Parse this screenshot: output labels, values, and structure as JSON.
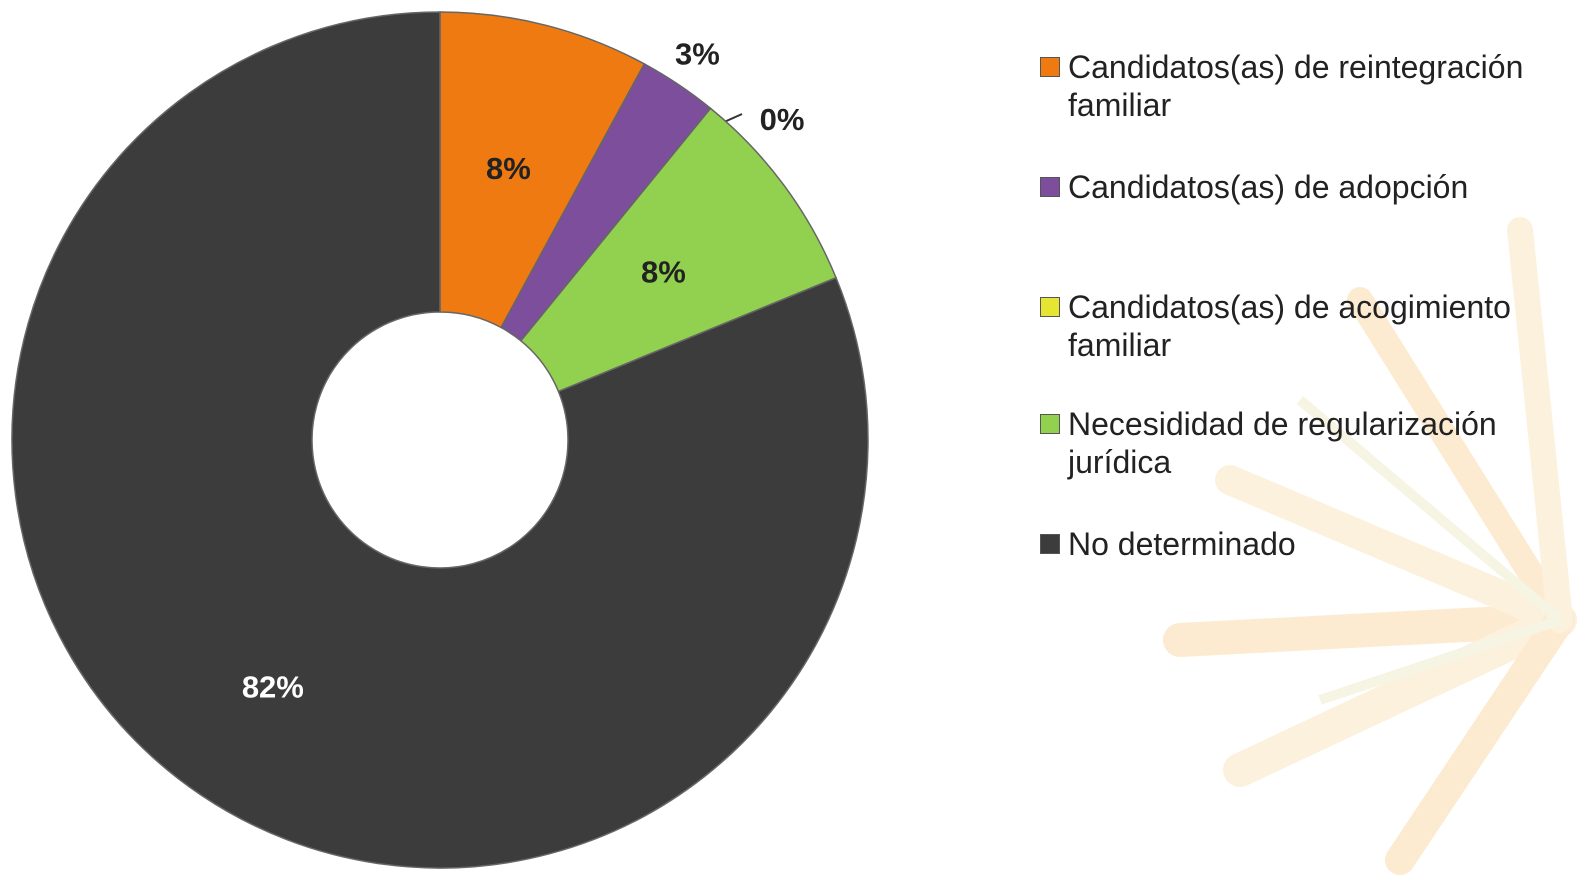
{
  "chart_data": {
    "type": "donut",
    "categories": [
      "Candidatos(as) de reintegración familiar",
      "Candidatos(as) de adopción",
      "Candidatos(as) de acogimiento familiar",
      "Necesididad de regularización jurídica",
      "No determinado"
    ],
    "values": [
      8,
      3,
      0,
      8,
      82
    ],
    "value_labels": [
      "8%",
      "3%",
      "0%",
      "8%",
      "82%"
    ],
    "colors": [
      "#f07a12",
      "#7d4e9c",
      "#e6e632",
      "#92d050",
      "#3c3c3c"
    ],
    "legend": "right"
  }
}
